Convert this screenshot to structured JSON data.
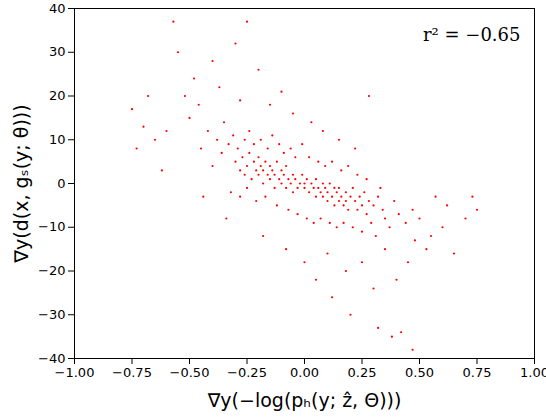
{
  "chart_data": {
    "type": "scatter",
    "xlabel": "∇y(−log(pₕ(y; ẑ, Θ)))",
    "ylabel": "∇y(d(x, gₛ(y; θ)))",
    "annotation": "r² = −0.65",
    "color": "#ff0000",
    "marker": "dot",
    "grid": false,
    "xlim": [
      -1,
      1
    ],
    "ylim": [
      -40,
      40
    ],
    "xticks": [
      {
        "value": -1,
        "label": "−1.00"
      },
      {
        "value": -0.75,
        "label": "−0.75"
      },
      {
        "value": -0.5,
        "label": "−0.50"
      },
      {
        "value": -0.25,
        "label": "−0.25"
      },
      {
        "value": 0,
        "label": "0.00"
      },
      {
        "value": 0.25,
        "label": "0.25"
      },
      {
        "value": 0.5,
        "label": "0.50"
      },
      {
        "value": 0.75,
        "label": "0.75"
      },
      {
        "value": 1,
        "label": "1.00"
      }
    ],
    "yticks": [
      -40,
      -30,
      -20,
      -10,
      0,
      10,
      20,
      30,
      40
    ],
    "x": [
      -0.3,
      -0.28,
      -0.27,
      -0.26,
      -0.25,
      -0.24,
      -0.23,
      -0.22,
      -0.21,
      -0.2,
      -0.2,
      -0.19,
      -0.18,
      -0.18,
      -0.17,
      -0.16,
      -0.15,
      -0.15,
      -0.14,
      -0.13,
      -0.13,
      -0.12,
      -0.11,
      -0.1,
      -0.1,
      -0.09,
      -0.08,
      -0.08,
      -0.07,
      -0.06,
      -0.05,
      -0.05,
      -0.04,
      -0.03,
      -0.02,
      -0.01,
      0.0,
      0.0,
      0.01,
      0.02,
      0.03,
      0.04,
      0.05,
      0.05,
      0.06,
      0.07,
      0.08,
      0.08,
      0.09,
      0.1,
      0.1,
      0.11,
      0.12,
      0.13,
      0.13,
      0.14,
      0.15,
      0.15,
      0.16,
      0.17,
      0.18,
      0.18,
      0.19,
      0.2,
      0.21,
      0.22,
      0.23,
      0.24,
      0.25,
      0.26,
      0.27,
      0.28,
      0.3,
      0.32,
      0.34,
      -0.45,
      -0.42,
      -0.4,
      -0.38,
      -0.36,
      -0.35,
      -0.33,
      -0.32,
      -0.31,
      -0.29,
      -0.28,
      -0.26,
      -0.25,
      -0.24,
      -0.22,
      -0.21,
      -0.19,
      -0.17,
      -0.16,
      -0.14,
      -0.12,
      -0.11,
      -0.09,
      -0.07,
      -0.06,
      -0.04,
      -0.03,
      -0.01,
      0.01,
      0.02,
      0.04,
      0.06,
      0.07,
      0.09,
      0.11,
      0.12,
      0.14,
      0.16,
      0.17,
      0.19,
      0.21,
      0.23,
      0.25,
      0.27,
      0.29,
      0.31,
      0.33,
      0.35,
      0.37,
      0.39,
      0.41,
      0.44,
      0.47,
      -0.75,
      -0.73,
      -0.7,
      -0.65,
      -0.62,
      -0.57,
      -0.55,
      -0.52,
      -0.5,
      -0.48,
      -0.46,
      -0.44,
      -0.4,
      -0.37,
      -0.34,
      -0.3,
      -0.28,
      -0.25,
      -0.2,
      -0.18,
      -0.15,
      -0.1,
      -0.08,
      -0.05,
      0.0,
      0.03,
      0.05,
      0.08,
      0.1,
      0.12,
      0.15,
      0.18,
      0.2,
      0.22,
      0.25,
      0.28,
      0.3,
      0.32,
      0.35,
      0.38,
      0.4,
      0.42,
      0.45,
      0.48,
      0.5,
      0.55,
      0.57,
      0.6,
      0.62,
      0.65,
      0.7,
      0.73,
      0.75,
      -0.68,
      -0.6,
      0.53,
      0.47
    ],
    "values": [
      5,
      3,
      6,
      2,
      4,
      7,
      1,
      5,
      3,
      2,
      6,
      4,
      0,
      3,
      5,
      2,
      1,
      4,
      3,
      -1,
      2,
      5,
      1,
      3,
      0,
      2,
      -1,
      4,
      1,
      0,
      2,
      -2,
      1,
      -1,
      0,
      2,
      0,
      -1,
      1,
      -2,
      0,
      -1,
      -3,
      1,
      -1,
      -2,
      0,
      -3,
      -1,
      -2,
      -4,
      0,
      -3,
      -1,
      -5,
      -2,
      -4,
      -1,
      -3,
      -5,
      -2,
      -4,
      -6,
      -3,
      -1,
      -4,
      -6,
      -3,
      -5,
      -2,
      -7,
      -4,
      -5,
      -3,
      -6,
      8,
      12,
      4,
      10,
      7,
      14,
      9,
      -2,
      11,
      8,
      -3,
      10,
      -1,
      12,
      9,
      -4,
      10,
      -3,
      8,
      11,
      -5,
      9,
      7,
      -6,
      8,
      6,
      -7,
      9,
      -8,
      6,
      -9,
      5,
      -8,
      4,
      -9,
      5,
      -10,
      3,
      -9,
      4,
      -10,
      2,
      -11,
      1,
      -9,
      -12,
      -1,
      -8,
      -10,
      -4,
      -7,
      -9,
      -6,
      17,
      8,
      13,
      10,
      3,
      37,
      30,
      20,
      15,
      24,
      18,
      -3,
      28,
      22,
      -8,
      32,
      19,
      37,
      26,
      -12,
      18,
      21,
      -15,
      16,
      -18,
      14,
      -22,
      12,
      -16,
      -26,
      10,
      -20,
      -30,
      8,
      -18,
      20,
      -24,
      -33,
      -15,
      -35,
      -22,
      -34,
      -18,
      -13,
      -8,
      -12,
      -3,
      -10,
      -5,
      -16,
      -8,
      -3,
      -6,
      20,
      12,
      -15,
      -38
    ]
  }
}
